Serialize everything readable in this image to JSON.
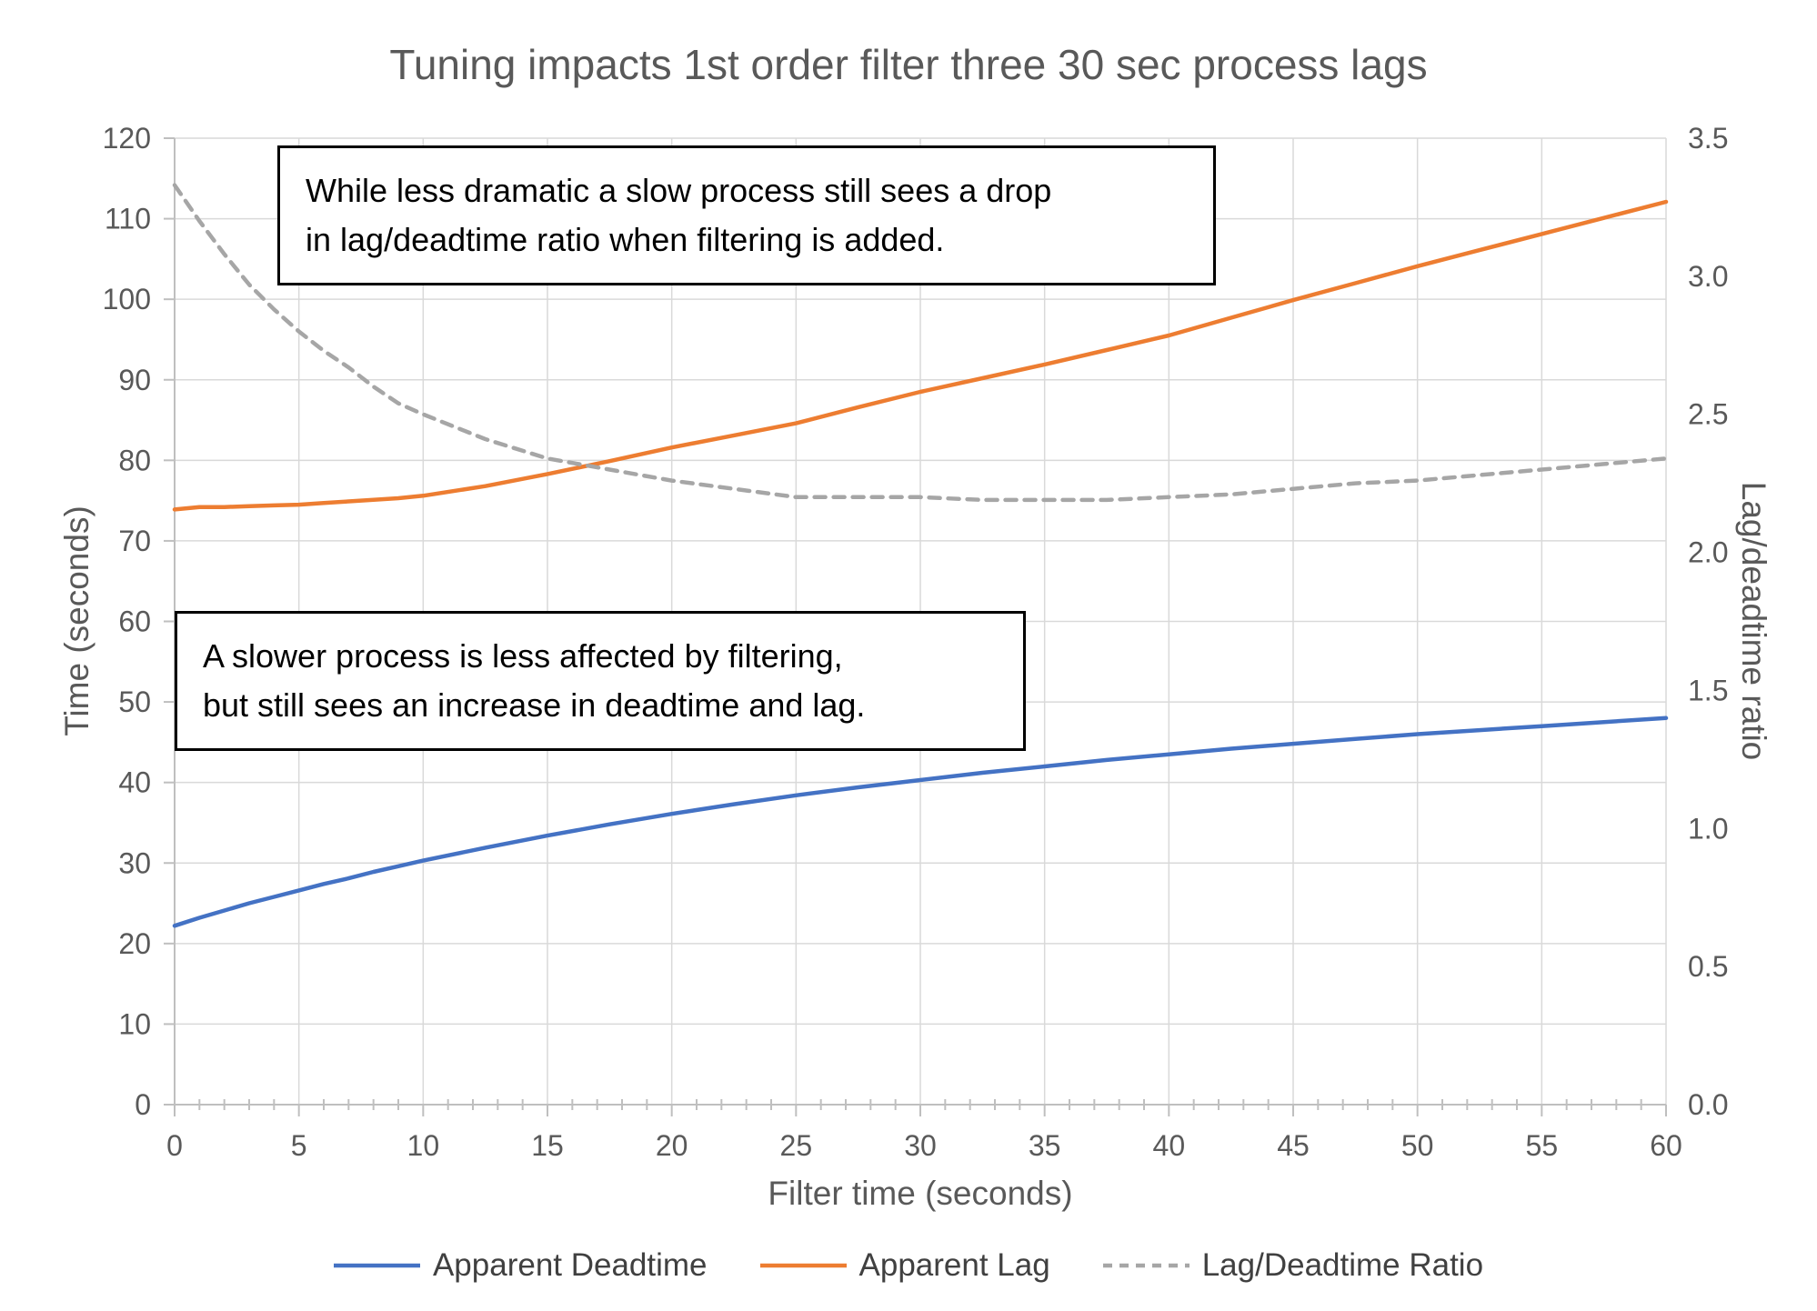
{
  "chart_data": {
    "type": "line",
    "title": "Tuning impacts 1st order filter three 30 sec process lags",
    "xlabel": "Filter time (seconds)",
    "ylabel_left": "Time (seconds)",
    "ylabel_right": "Lag/deadtime ratio",
    "xlim": [
      0,
      60
    ],
    "ylim_left": [
      0,
      120
    ],
    "ylim_right": [
      0,
      3.5
    ],
    "x_ticks": [
      0,
      5,
      10,
      15,
      20,
      25,
      30,
      35,
      40,
      45,
      50,
      55,
      60
    ],
    "y_ticks_left": [
      0,
      10,
      20,
      30,
      40,
      50,
      60,
      70,
      80,
      90,
      100,
      110,
      120
    ],
    "y_ticks_right": [
      "0.0",
      "0.5",
      "1.0",
      "1.5",
      "2.0",
      "2.5",
      "3.0",
      "3.5"
    ],
    "grid": true,
    "legend_position": "bottom",
    "colors": {
      "grid": "#d9d9d9",
      "axis": "#bfbfbf",
      "text": "#595959",
      "blue": "#4472c4",
      "orange": "#ed7d31",
      "gray": "#a6a6a6"
    },
    "series": [
      {
        "id": "apparent-deadtime",
        "name": "Apparent Deadtime",
        "axis": "left",
        "color": "#4472c4",
        "dash": false,
        "x": [
          0,
          1,
          2,
          3,
          4,
          5,
          6,
          7,
          8,
          9,
          10,
          12.5,
          15,
          17.5,
          20,
          22.5,
          25,
          27.5,
          30,
          32.5,
          35,
          37.5,
          40,
          42.5,
          45,
          47.5,
          50,
          52.5,
          55,
          57.5,
          60
        ],
        "y": [
          22.2,
          23.2,
          24.1,
          25.0,
          25.8,
          26.6,
          27.4,
          28.1,
          28.9,
          29.6,
          30.3,
          31.9,
          33.4,
          34.8,
          36.1,
          37.3,
          38.4,
          39.4,
          40.3,
          41.2,
          42.0,
          42.8,
          43.5,
          44.2,
          44.8,
          45.4,
          46.0,
          46.5,
          47.0,
          47.5,
          48.0
        ]
      },
      {
        "id": "apparent-lag",
        "name": "Apparent Lag",
        "axis": "left",
        "color": "#ed7d31",
        "dash": false,
        "x": [
          0,
          1,
          2,
          3,
          4,
          5,
          6,
          7,
          8,
          9,
          10,
          12.5,
          15,
          17.5,
          20,
          22.5,
          25,
          27.5,
          30,
          32.5,
          35,
          37.5,
          40,
          42.5,
          45,
          47.5,
          50,
          52.5,
          55,
          57.5,
          60
        ],
        "y": [
          73.9,
          74.2,
          74.2,
          74.3,
          74.4,
          74.5,
          74.7,
          74.9,
          75.1,
          75.3,
          75.6,
          76.8,
          78.3,
          79.9,
          81.6,
          83.1,
          84.6,
          86.6,
          88.5,
          90.2,
          91.9,
          93.7,
          95.5,
          97.7,
          99.9,
          102.0,
          104.1,
          106.1,
          108.1,
          110.1,
          112.1
        ]
      },
      {
        "id": "lag-deadtime-ratio",
        "name": "Lag/Deadtime Ratio",
        "axis": "right",
        "color": "#a6a6a6",
        "dash": true,
        "x": [
          0,
          1,
          2,
          3,
          4,
          5,
          6,
          7,
          8,
          9,
          10,
          12.5,
          15,
          17.5,
          20,
          22.5,
          25,
          27.5,
          30,
          32.5,
          35,
          37.5,
          40,
          42.5,
          45,
          47.5,
          50,
          52.5,
          55,
          57.5,
          60
        ],
        "y": [
          3.33,
          3.2,
          3.08,
          2.97,
          2.88,
          2.8,
          2.73,
          2.67,
          2.6,
          2.54,
          2.5,
          2.41,
          2.34,
          2.3,
          2.26,
          2.23,
          2.2,
          2.2,
          2.2,
          2.19,
          2.19,
          2.19,
          2.2,
          2.21,
          2.23,
          2.25,
          2.26,
          2.28,
          2.3,
          2.32,
          2.34
        ]
      }
    ],
    "annotations": [
      {
        "line1": "While less dramatic a slow process still sees a drop",
        "line2": "in lag/deadtime ratio when filtering is added."
      },
      {
        "line1": "A slower process is less affected by filtering,",
        "line2": "but still sees an increase in deadtime and lag."
      }
    ]
  }
}
